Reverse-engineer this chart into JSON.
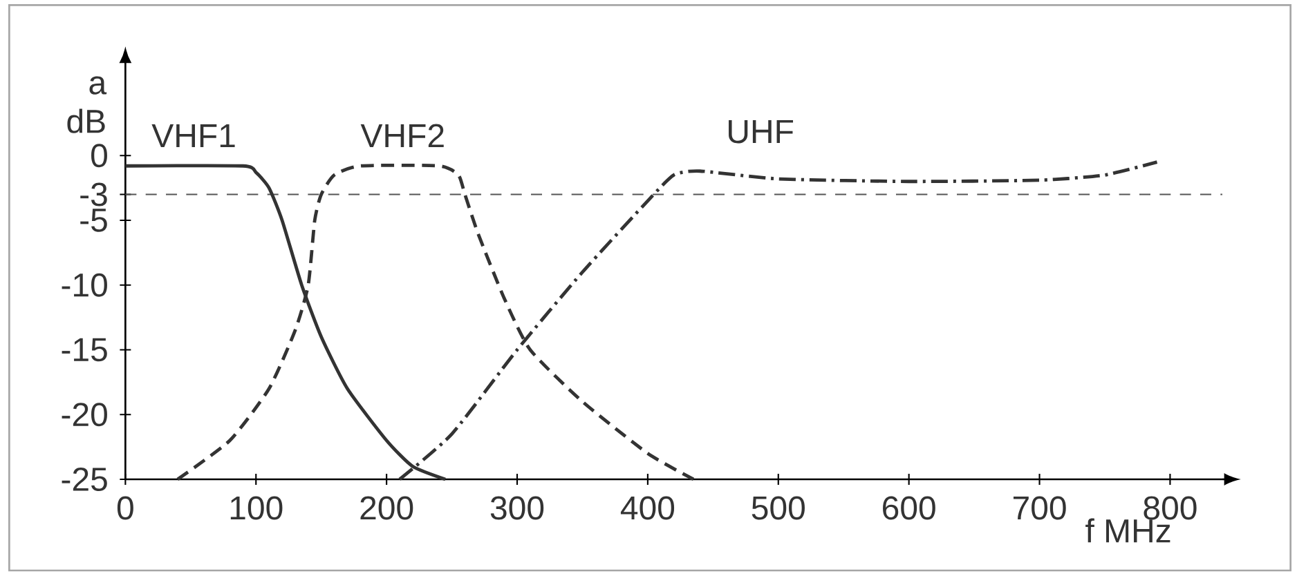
{
  "chart_data": {
    "type": "line",
    "xlabel": "f MHz",
    "ylabel": "a dB",
    "xlim": [
      0,
      840
    ],
    "ylim": [
      -25,
      7
    ],
    "xticks": [
      0,
      100,
      200,
      300,
      400,
      500,
      600,
      700,
      800
    ],
    "yticks": [
      -25,
      -20,
      -15,
      -10,
      -5,
      -3,
      0
    ],
    "grid": false,
    "legend": false,
    "marker": "none",
    "ref_lines": [
      {
        "axis": "y",
        "value": -3,
        "color": "#555555",
        "line_style": "dashed"
      }
    ],
    "series": [
      {
        "name": "VHF1",
        "color": "#333333",
        "line_style": "solid",
        "x": [
          0,
          90,
          100,
          110,
          120,
          135,
          150,
          170,
          200,
          220,
          245
        ],
        "values": [
          -0.8,
          -0.8,
          -1.3,
          -2.5,
          -5,
          -10,
          -14,
          -18,
          -22,
          -24,
          -25
        ]
      },
      {
        "name": "VHF2",
        "color": "#333333",
        "line_style": "dashed",
        "x": [
          40,
          80,
          110,
          130,
          140,
          145,
          150,
          160,
          180,
          240,
          255,
          260,
          270,
          290,
          310,
          350,
          400,
          435
        ],
        "values": [
          -25,
          -22,
          -18,
          -13.5,
          -10,
          -5,
          -3,
          -1.5,
          -0.8,
          -0.8,
          -1.5,
          -3,
          -6,
          -11,
          -15,
          -19,
          -23,
          -25
        ]
      },
      {
        "name": "UHF",
        "color": "#333333",
        "line_style": "dashdot",
        "x": [
          210,
          250,
          300,
          350,
          400,
          420,
          440,
          500,
          600,
          700,
          750,
          790
        ],
        "values": [
          -25,
          -21.5,
          -15,
          -9,
          -3.5,
          -1.5,
          -1.2,
          -1.8,
          -2,
          -1.9,
          -1.5,
          -0.5
        ]
      }
    ]
  }
}
